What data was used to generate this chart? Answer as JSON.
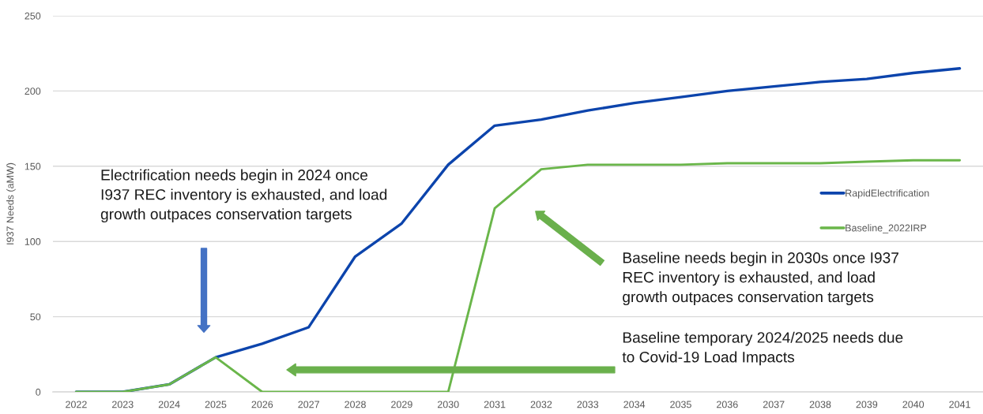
{
  "chart_data": {
    "type": "line",
    "categories": [
      "2022",
      "2023",
      "2024",
      "2025",
      "2026",
      "2027",
      "2028",
      "2029",
      "2030",
      "2031",
      "2032",
      "2033",
      "2034",
      "2035",
      "2036",
      "2037",
      "2038",
      "2039",
      "2040",
      "2041"
    ],
    "ylabel": "I937 Needs (aMW)",
    "ylim": [
      0,
      250
    ],
    "yticks": [
      0,
      50,
      100,
      150,
      200,
      250
    ],
    "grid": "y",
    "legend": "right",
    "series": [
      {
        "name": "RapidElectrification",
        "color": "#0c44ac",
        "values": [
          0,
          0,
          5,
          23,
          32,
          43,
          90,
          112,
          151,
          177,
          181,
          187,
          192,
          196,
          200,
          203,
          206,
          208,
          212,
          215
        ]
      },
      {
        "name": "Baseline_2022IRP",
        "color": "#6ab64a",
        "values": [
          0,
          0,
          5,
          23,
          0,
          0,
          0,
          0,
          0,
          122,
          148,
          151,
          151,
          151,
          152,
          152,
          152,
          153,
          154,
          154
        ]
      }
    ],
    "annotations": [
      "Electrification needs begin in 2024 once\nI937 REC inventory is exhausted, and load\ngrowth outpaces conservation targets",
      "Baseline needs begin in 2030s once I937\nREC inventory is exhausted, and load\ngrowth outpaces conservation targets",
      "Baseline temporary 2024/2025 needs due\nto Covid-19 Load Impacts"
    ]
  }
}
